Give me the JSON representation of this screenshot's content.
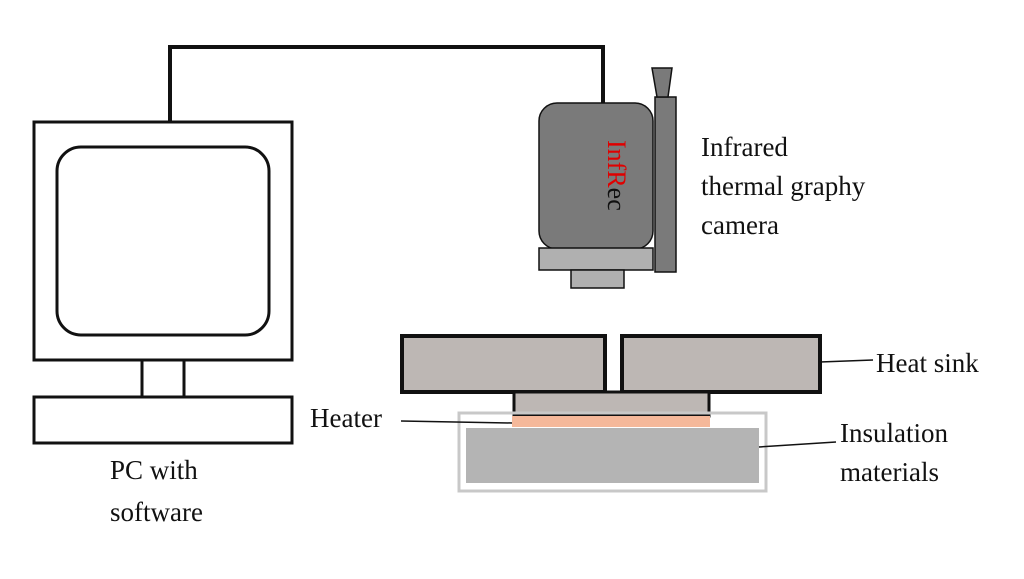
{
  "labels": {
    "pc_line1": "PC with",
    "pc_line2": "software",
    "camera_line1": "Infrared",
    "camera_line2": "thermal graphy",
    "camera_line3": "camera",
    "camera_brand_a": "Inf",
    "camera_brand_b": "R",
    "camera_brand_c": "ec",
    "heat_sink": "Heat sink",
    "heater": "Heater",
    "insulation_line1": "Insulation",
    "insulation_line2": "materials"
  },
  "colors": {
    "camera_body": "#7a7a7a",
    "camera_base": "#b0b0b0",
    "heat_sink": "#bdb7b4",
    "heater": "#f5b89a",
    "insulation_fill": "#b4b4b4",
    "insulation_border": "#c8c8c8",
    "brand_red": "#e00000"
  }
}
